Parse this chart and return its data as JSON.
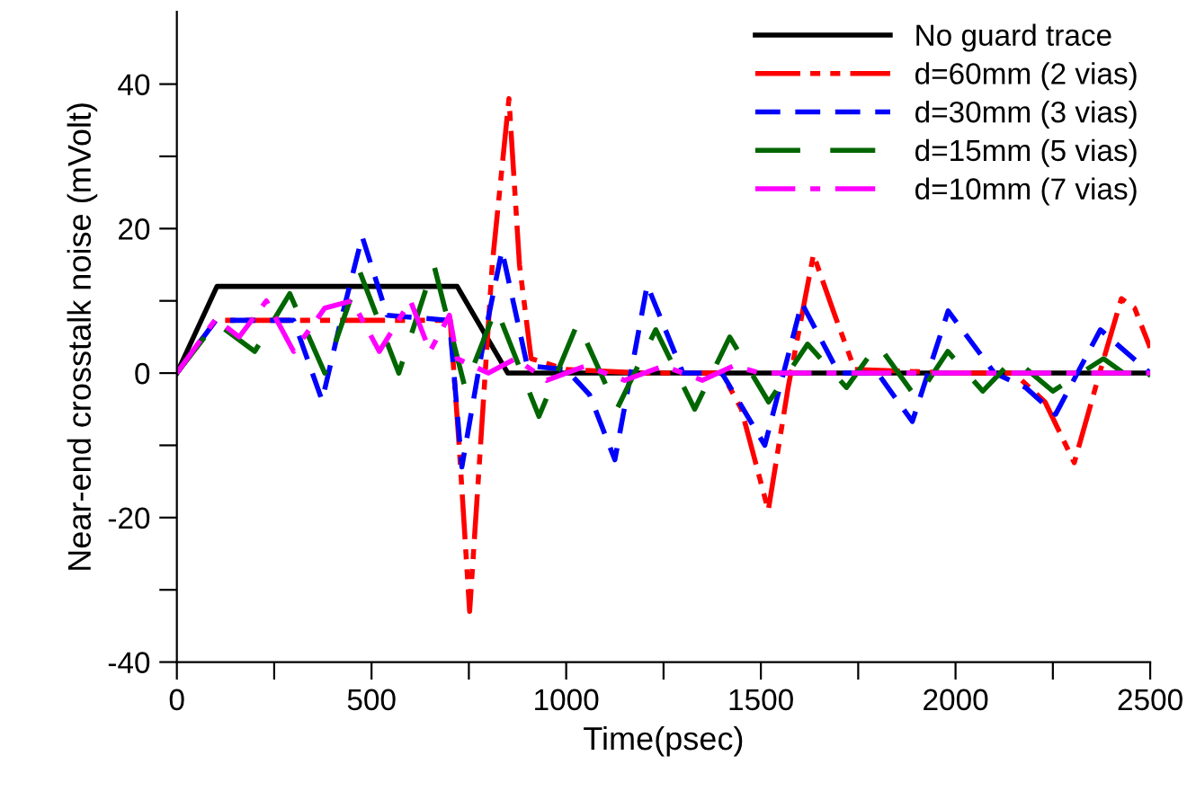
{
  "chart_data": {
    "type": "line",
    "xlabel": "Time(psec)",
    "ylabel": "Near-end crosstalk noise (mVolt)",
    "xlim": [
      0,
      2500
    ],
    "ylim": [
      -40,
      50
    ],
    "xticks": [
      0,
      {
        "value": 250,
        "label": null
      },
      500,
      {
        "value": 750,
        "label": null
      },
      1000,
      {
        "value": 1250,
        "label": null
      },
      1500,
      {
        "value": 1750,
        "label": null
      },
      2000,
      {
        "value": 2250,
        "label": null
      },
      2500
    ],
    "yticks": [
      -40,
      {
        "value": -30,
        "label": null
      },
      -20,
      {
        "value": -10,
        "label": null
      },
      0,
      {
        "value": 10,
        "label": null
      },
      20,
      {
        "value": 30,
        "label": null
      },
      40
    ],
    "grid": false,
    "legend": "top right",
    "marker": "none",
    "series": [
      {
        "name": "No guard trace",
        "color": "#000000",
        "line_style": "solid",
        "x": [
          0,
          103,
          720,
          850,
          2500
        ],
        "values": [
          0,
          12,
          12,
          0,
          0
        ]
      },
      {
        "name": "d=60mm (2 vias)",
        "color": "#ff0000",
        "line_style": "dashdotdot",
        "x": [
          0,
          100,
          300,
          500,
          702,
          725,
          752,
          780,
          810,
          853,
          880,
          910,
          1000,
          1200,
          1400,
          1450,
          1519,
          1570,
          1635,
          1690,
          1741,
          2000,
          2150,
          2230,
          2305,
          2370,
          2426,
          2460,
          2500
        ],
        "values": [
          0,
          7.3,
          7.3,
          7.3,
          7.3,
          -10,
          -33,
          -10,
          15,
          38,
          15,
          2,
          0.5,
          0,
          0,
          -5,
          -19,
          -2,
          16.4,
          8,
          0.5,
          0,
          0,
          -4,
          -12.4,
          0,
          10.3,
          9,
          3.5
        ]
      },
      {
        "name": "d=30mm (3 vias)",
        "color": "#0000ff",
        "line_style": "dashed",
        "x": [
          0,
          100,
          300,
          373,
          420,
          476,
          540,
          700,
          732,
          790,
          835,
          900,
          1000,
          1060,
          1125,
          1208,
          1300,
          1400,
          1510,
          1605,
          1700,
          1800,
          1889,
          1981,
          2100,
          2180,
          2257,
          2372,
          2500
        ],
        "values": [
          0,
          7.3,
          7.3,
          -3.8,
          7,
          18.9,
          8,
          7.3,
          -13,
          5,
          17,
          1,
          0.5,
          -3,
          -12,
          12.2,
          0,
          0,
          -10,
          9.7,
          0,
          0,
          -6.7,
          8.6,
          0,
          -2,
          -5.7,
          6,
          0
        ]
      },
      {
        "name": "d=15mm (5 vias)",
        "color": "#006600",
        "line_style": "longdash",
        "x": [
          0,
          100,
          200,
          290,
          380,
          470,
          570,
          660,
          740,
          820,
          930,
          1030,
          1130,
          1230,
          1330,
          1420,
          1520,
          1620,
          1720,
          1800,
          1900,
          1980,
          2070,
          2150,
          2250,
          2380,
          2470,
          2500
        ],
        "values": [
          0,
          7,
          3,
          11,
          0,
          14,
          0,
          15,
          -2,
          9,
          -6,
          7,
          -5,
          6,
          -5,
          5,
          -4,
          4,
          -2,
          4,
          -3.5,
          3,
          -2.5,
          2,
          -2.5,
          2,
          -1.5,
          0
        ]
      },
      {
        "name": "d=10mm (7 vias)",
        "color": "#ff00ff",
        "line_style": "dashdot",
        "x": [
          0,
          100,
          160,
          230,
          300,
          380,
          450,
          520,
          600,
          650,
          700,
          720,
          800,
          870,
          950,
          1050,
          1150,
          1250,
          1350,
          1430,
          1500,
          2500
        ],
        "values": [
          0,
          7.5,
          5,
          10,
          3,
          9,
          10,
          3,
          10,
          3,
          8,
          2,
          0,
          2,
          -1,
          1,
          -1,
          1,
          -1,
          1,
          0,
          0
        ]
      }
    ]
  }
}
